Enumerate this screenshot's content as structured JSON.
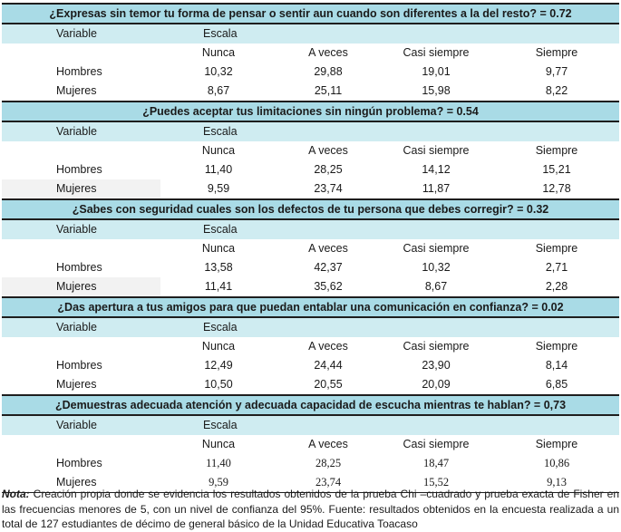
{
  "header_labels": {
    "variable": "Variable",
    "scale": "Escala"
  },
  "scale_options": [
    "Nunca",
    "A veces",
    "Casi siempre",
    "Siempre"
  ],
  "blocks": [
    {
      "question": "¿Expresas sin temor tu forma de pensar o sentir aun cuando son diferentes a la del resto? = 0.72",
      "rows": [
        {
          "label": "Hombres",
          "values": [
            "10,32",
            "29,88",
            "19,01",
            "9,77"
          ]
        },
        {
          "label": "Mujeres",
          "values": [
            "8,67",
            "25,11",
            "15,98",
            "8,22"
          ]
        }
      ]
    },
    {
      "question": "¿Puedes aceptar tus limitaciones sin ningún problema? = 0.54",
      "rows": [
        {
          "label": "Hombres",
          "values": [
            "11,40",
            "28,25",
            "14,12",
            "15,21"
          ]
        },
        {
          "label": "Mujeres",
          "values": [
            "9,59",
            "23,74",
            "11,87",
            "12,78"
          ]
        }
      ]
    },
    {
      "question": "¿Sabes con seguridad cuales son los defectos de tu persona que debes corregir? = 0.32",
      "rows": [
        {
          "label": "Hombres",
          "values": [
            "13,58",
            "42,37",
            "10,32",
            "2,71"
          ]
        },
        {
          "label": "Mujeres",
          "values": [
            "11,41",
            "35,62",
            "8,67",
            "2,28"
          ]
        }
      ]
    },
    {
      "question": "¿Das apertura a tus amigos para que puedan entablar una comunicación en confianza? = 0.02",
      "rows": [
        {
          "label": "Hombres",
          "values": [
            "12,49",
            "24,44",
            "23,90",
            "8,14"
          ]
        },
        {
          "label": "Mujeres",
          "values": [
            "10,50",
            "20,55",
            "20,09",
            "6,85"
          ]
        }
      ]
    },
    {
      "question": "¿Demuestras adecuada atención y adecuada capacidad de escucha mientras te hablan? = 0,73",
      "rows": [
        {
          "label": "Hombres",
          "values": [
            "11,40",
            "28,25",
            "18,47",
            "10,86"
          ]
        },
        {
          "label": "Mujeres",
          "values": [
            "9,59",
            "23,74",
            "15,52",
            "9,13"
          ]
        }
      ]
    }
  ],
  "note": {
    "label": "Nota:",
    "text": " Creación propia donde se evidencia los resultados obtenidos de la prueba Chi –cuadrado y prueba exacta de Fisher en las frecuencias menores de 5, con un nivel de confianza del 95%. Fuente: resultados obtenidos en la encuesta realizada a un total de 127 estudiantes de décimo de general básico de la Unidad Educativa Toacaso"
  }
}
